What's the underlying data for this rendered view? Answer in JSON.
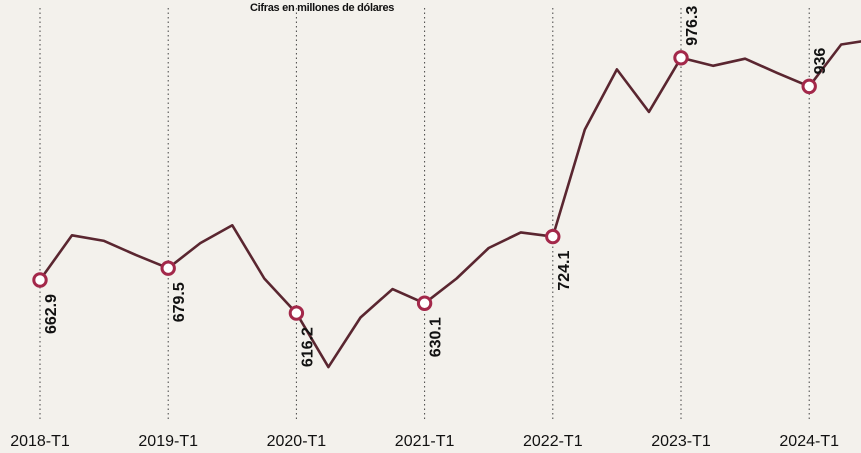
{
  "chart_data": {
    "type": "line",
    "subtitle": "Cifras en millones de dólares",
    "x": [
      "2018-T1",
      "2018-T2",
      "2018-T3",
      "2018-T4",
      "2019-T1",
      "2019-T2",
      "2019-T3",
      "2019-T4",
      "2020-T1",
      "2020-T2",
      "2020-T3",
      "2020-T4",
      "2021-T1",
      "2021-T2",
      "2021-T3",
      "2021-T4",
      "2022-T1",
      "2022-T2",
      "2022-T3",
      "2022-T4",
      "2023-T1",
      "2023-T2",
      "2023-T3",
      "2023-T4",
      "2024-T1",
      "2024-T2",
      "2024-T3"
    ],
    "x_tick_labels": [
      "2018-T1",
      "2019-T1",
      "2020-T1",
      "2021-T1",
      "2022-T1",
      "2023-T1",
      "2024-T1"
    ],
    "series": [
      {
        "values": [
          662.9,
          726,
          718,
          698,
          679.5,
          715,
          740,
          665,
          616.2,
          540,
          610,
          650,
          630.1,
          665,
          708,
          730,
          724.1,
          875,
          960,
          900,
          976.3,
          965,
          975,
          955,
          936,
          995,
          1002
        ]
      }
    ],
    "labeled_points": [
      {
        "x": "2018-T1",
        "label": "662.9"
      },
      {
        "x": "2019-T1",
        "label": "679.5"
      },
      {
        "x": "2020-T1",
        "label": "616.2"
      },
      {
        "x": "2021-T1",
        "label": "630.1"
      },
      {
        "x": "2022-T1",
        "label": "724.1"
      },
      {
        "x": "2023-T1",
        "label": "976.3"
      },
      {
        "x": "2024-T1",
        "label": "936"
      }
    ],
    "grid": "vertical dotted lines at each T1",
    "colors": {
      "line": "#5a2630",
      "marker": "#a3284a",
      "label": "#111111",
      "grid": "#444444"
    }
  }
}
